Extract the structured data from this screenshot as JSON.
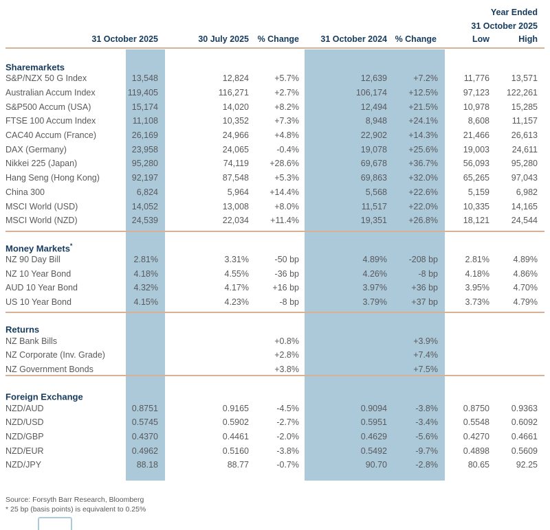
{
  "colors": {
    "accent_navy": "#153A5D",
    "body_text_gray": "#58595B",
    "highlight_blue": "#ACC9DA",
    "divider_tan": "#D8B096"
  },
  "header": {
    "year_ended_line1": "Year Ended",
    "year_ended_line2": "31 October 2025",
    "columns": [
      "31 October 2025",
      "30 July 2025",
      "% Change",
      "31 October 2024",
      "% Change",
      "Low",
      "High"
    ]
  },
  "sections": [
    {
      "title": "Sharemarkets",
      "title_suffix": "",
      "rows": [
        {
          "label": "S&P/NZX 50 G Index",
          "values": [
            "13,548",
            "12,824",
            "+5.7%",
            "12,639",
            "+7.2%",
            "11,776",
            "13,571"
          ]
        },
        {
          "label": "Australian Accum Index",
          "values": [
            "119,405",
            "116,271",
            "+2.7%",
            "106,174",
            "+12.5%",
            "97,123",
            "122,261"
          ]
        },
        {
          "label": "S&P500 Accum (USA)",
          "values": [
            "15,174",
            "14,020",
            "+8.2%",
            "12,494",
            "+21.5%",
            "10,978",
            "15,285"
          ]
        },
        {
          "label": "FTSE 100 Accum Index",
          "values": [
            "11,108",
            "10,352",
            "+7.3%",
            "8,948",
            "+24.1%",
            "8,608",
            "11,157"
          ]
        },
        {
          "label": "CAC40 Accum (France)",
          "values": [
            "26,169",
            "24,966",
            "+4.8%",
            "22,902",
            "+14.3%",
            "21,466",
            "26,613"
          ]
        },
        {
          "label": "DAX (Germany)",
          "values": [
            "23,958",
            "24,065",
            "-0.4%",
            "19,078",
            "+25.6%",
            "19,003",
            "24,611"
          ]
        },
        {
          "label": "Nikkei 225 (Japan)",
          "values": [
            "95,280",
            "74,119",
            "+28.6%",
            "69,678",
            "+36.7%",
            "56,093",
            "95,280"
          ]
        },
        {
          "label": "Hang Seng (Hong Kong)",
          "values": [
            "92,197",
            "87,548",
            "+5.3%",
            "69,863",
            "+32.0%",
            "65,265",
            "97,043"
          ]
        },
        {
          "label": "China 300",
          "values": [
            "6,824",
            "5,964",
            "+14.4%",
            "5,568",
            "+22.6%",
            "5,159",
            "6,982"
          ]
        },
        {
          "label": "MSCI World (USD)",
          "values": [
            "14,052",
            "13,008",
            "+8.0%",
            "11,517",
            "+22.0%",
            "10,335",
            "14,165"
          ]
        },
        {
          "label": "MSCI World (NZD)",
          "values": [
            "24,539",
            "22,034",
            "+11.4%",
            "19,351",
            "+26.8%",
            "18,121",
            "24,544"
          ]
        }
      ]
    },
    {
      "title": "Money Markets",
      "title_suffix": "*",
      "rows": [
        {
          "label": "NZ 90 Day Bill",
          "values": [
            "2.81%",
            "3.31%",
            "-50 bp",
            "4.89%",
            "-208 bp",
            "2.81%",
            "4.89%"
          ]
        },
        {
          "label": "NZ 10 Year Bond",
          "values": [
            "4.18%",
            "4.55%",
            "-36 bp",
            "4.26%",
            "-8 bp",
            "4.18%",
            "4.86%"
          ]
        },
        {
          "label": "AUD 10 Year Bond",
          "values": [
            "4.32%",
            "4.17%",
            "+16 bp",
            "3.97%",
            "+36 bp",
            "3.95%",
            "4.70%"
          ]
        },
        {
          "label": "US 10 Year Bond",
          "values": [
            "4.15%",
            "4.23%",
            "-8 bp",
            "3.79%",
            "+37 bp",
            "3.73%",
            "4.79%"
          ]
        }
      ]
    },
    {
      "title": "Returns",
      "title_suffix": "",
      "rows": [
        {
          "label": "NZ Bank Bills",
          "values": [
            "",
            "",
            "+0.8%",
            "",
            "+3.9%",
            "",
            ""
          ]
        },
        {
          "label": "NZ Corporate (Inv. Grade)",
          "values": [
            "",
            "",
            "+2.8%",
            "",
            "+7.4%",
            "",
            ""
          ]
        },
        {
          "label": "NZ Government Bonds",
          "values": [
            "",
            "",
            "+3.8%",
            "",
            "+7.5%",
            "",
            ""
          ]
        }
      ]
    },
    {
      "title": "Foreign Exchange",
      "title_suffix": "",
      "rows": [
        {
          "label": "NZD/AUD",
          "values": [
            "0.8751",
            "0.9165",
            "-4.5%",
            "0.9094",
            "-3.8%",
            "0.8750",
            "0.9363"
          ]
        },
        {
          "label": "NZD/USD",
          "values": [
            "0.5745",
            "0.5902",
            "-2.7%",
            "0.5951",
            "-3.4%",
            "0.5548",
            "0.6092"
          ]
        },
        {
          "label": "NZD/GBP",
          "values": [
            "0.4370",
            "0.4461",
            "-2.0%",
            "0.4629",
            "-5.6%",
            "0.4270",
            "0.4661"
          ]
        },
        {
          "label": "NZD/EUR",
          "values": [
            "0.4962",
            "0.5160",
            "-3.8%",
            "0.5492",
            "-9.7%",
            "0.4898",
            "0.5609"
          ]
        },
        {
          "label": "NZD/JPY",
          "values": [
            "88.18",
            "88.77",
            "-0.7%",
            "90.70",
            "-2.8%",
            "80.65",
            "92.25"
          ]
        }
      ]
    }
  ],
  "footer": {
    "source": "Source: Forsyth Barr Research, Bloomberg",
    "footnote": "* 25 bp (basis points) is equivalent to 0.25%"
  }
}
